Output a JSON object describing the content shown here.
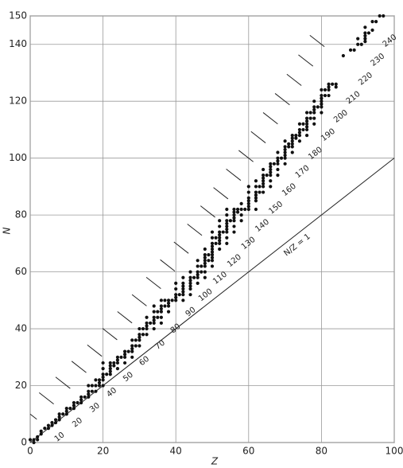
{
  "chart_data": {
    "type": "scatter",
    "x_label": "Z",
    "y_label": "N",
    "xlim": [
      0,
      100
    ],
    "ylim": [
      0,
      150
    ],
    "xticks": [
      0,
      20,
      40,
      60,
      80,
      100
    ],
    "yticks": [
      0,
      20,
      40,
      60,
      80,
      100,
      120,
      140,
      150
    ],
    "grid": true,
    "color": "#111111",
    "x": [
      0,
      1,
      1,
      2,
      2,
      3,
      3,
      4,
      5,
      5,
      6,
      6,
      7,
      7,
      8,
      8,
      8,
      9,
      10,
      10,
      10,
      11,
      12,
      12,
      12,
      13,
      14,
      14,
      14,
      15,
      16,
      16,
      16,
      16,
      17,
      17,
      18,
      18,
      18,
      19,
      19,
      19,
      20,
      20,
      20,
      20,
      20,
      20,
      21,
      22,
      22,
      22,
      22,
      22,
      23,
      23,
      24,
      24,
      24,
      24,
      25,
      26,
      26,
      26,
      26,
      27,
      28,
      28,
      28,
      28,
      28,
      29,
      29,
      30,
      30,
      30,
      30,
      30,
      31,
      31,
      32,
      32,
      32,
      32,
      32,
      33,
      34,
      34,
      34,
      34,
      34,
      34,
      35,
      35,
      36,
      36,
      36,
      36,
      36,
      36,
      37,
      37,
      38,
      38,
      38,
      38,
      39,
      40,
      40,
      40,
      40,
      40,
      41,
      42,
      42,
      42,
      42,
      42,
      42,
      42,
      44,
      44,
      44,
      44,
      44,
      44,
      44,
      45,
      46,
      46,
      46,
      46,
      46,
      46,
      47,
      47,
      48,
      48,
      48,
      48,
      48,
      48,
      48,
      48,
      49,
      49,
      50,
      50,
      50,
      50,
      50,
      50,
      50,
      50,
      50,
      50,
      51,
      51,
      52,
      52,
      52,
      52,
      52,
      52,
      52,
      52,
      53,
      54,
      54,
      54,
      54,
      54,
      54,
      54,
      54,
      54,
      55,
      56,
      56,
      56,
      56,
      56,
      56,
      56,
      57,
      57,
      58,
      58,
      58,
      58,
      59,
      60,
      60,
      60,
      60,
      60,
      60,
      60,
      62,
      62,
      62,
      62,
      62,
      62,
      62,
      63,
      63,
      64,
      64,
      64,
      64,
      64,
      64,
      64,
      65,
      66,
      66,
      66,
      66,
      66,
      66,
      66,
      67,
      68,
      68,
      68,
      68,
      68,
      68,
      69,
      70,
      70,
      70,
      70,
      70,
      70,
      70,
      71,
      71,
      72,
      72,
      72,
      72,
      72,
      72,
      73,
      73,
      74,
      74,
      74,
      74,
      74,
      75,
      75,
      76,
      76,
      76,
      76,
      76,
      76,
      76,
      77,
      77,
      78,
      78,
      78,
      78,
      78,
      78,
      79,
      80,
      80,
      80,
      80,
      80,
      80,
      80,
      81,
      81,
      82,
      82,
      82,
      82,
      83,
      84,
      84,
      86,
      88,
      89,
      90,
      90,
      91,
      92,
      92,
      92,
      92,
      92,
      93,
      94,
      94,
      95,
      96,
      97
    ],
    "values": [
      1,
      0,
      1,
      1,
      2,
      3,
      4,
      5,
      5,
      6,
      6,
      7,
      7,
      8,
      8,
      9,
      10,
      10,
      10,
      11,
      12,
      12,
      12,
      13,
      14,
      14,
      14,
      15,
      16,
      16,
      16,
      17,
      18,
      20,
      18,
      20,
      18,
      20,
      22,
      20,
      21,
      22,
      20,
      22,
      23,
      24,
      26,
      28,
      24,
      24,
      25,
      26,
      27,
      28,
      27,
      28,
      26,
      28,
      29,
      30,
      30,
      28,
      30,
      31,
      32,
      32,
      30,
      32,
      33,
      34,
      36,
      34,
      36,
      34,
      36,
      37,
      38,
      40,
      38,
      40,
      38,
      40,
      41,
      42,
      44,
      42,
      40,
      42,
      43,
      44,
      46,
      48,
      44,
      46,
      42,
      44,
      46,
      47,
      48,
      50,
      48,
      50,
      46,
      48,
      49,
      50,
      50,
      50,
      51,
      52,
      54,
      56,
      52,
      50,
      52,
      53,
      54,
      55,
      56,
      58,
      52,
      54,
      55,
      56,
      57,
      58,
      60,
      58,
      56,
      58,
      59,
      60,
      62,
      64,
      60,
      62,
      58,
      60,
      62,
      63,
      64,
      65,
      66,
      68,
      64,
      66,
      62,
      64,
      65,
      66,
      67,
      68,
      69,
      70,
      72,
      74,
      70,
      72,
      68,
      70,
      71,
      72,
      73,
      74,
      76,
      78,
      74,
      70,
      72,
      74,
      75,
      76,
      77,
      78,
      80,
      82,
      78,
      74,
      76,
      78,
      79,
      80,
      81,
      82,
      81,
      82,
      78,
      80,
      82,
      84,
      82,
      82,
      83,
      84,
      85,
      86,
      88,
      90,
      82,
      85,
      86,
      87,
      88,
      90,
      92,
      88,
      90,
      88,
      90,
      91,
      92,
      93,
      94,
      96,
      94,
      90,
      92,
      94,
      95,
      96,
      97,
      98,
      98,
      94,
      96,
      98,
      99,
      100,
      102,
      100,
      98,
      100,
      101,
      102,
      103,
      104,
      106,
      104,
      105,
      102,
      104,
      105,
      106,
      107,
      108,
      107,
      108,
      106,
      108,
      109,
      110,
      112,
      110,
      112,
      108,
      110,
      111,
      112,
      113,
      114,
      116,
      114,
      116,
      112,
      114,
      116,
      117,
      118,
      120,
      118,
      116,
      118,
      119,
      120,
      121,
      122,
      124,
      122,
      124,
      122,
      124,
      125,
      126,
      126,
      125,
      126,
      136,
      138,
      138,
      140,
      142,
      140,
      141,
      142,
      143,
      144,
      146,
      144,
      145,
      148,
      148,
      150,
      150
    ],
    "isobars": [
      10,
      20,
      30,
      40,
      50,
      60,
      70,
      80,
      90,
      100,
      110,
      120,
      130,
      140,
      150,
      160,
      170,
      180,
      190,
      200,
      210,
      220,
      230,
      240
    ],
    "reference_line": {
      "label": "N/Z = 1",
      "slope": 1
    }
  }
}
